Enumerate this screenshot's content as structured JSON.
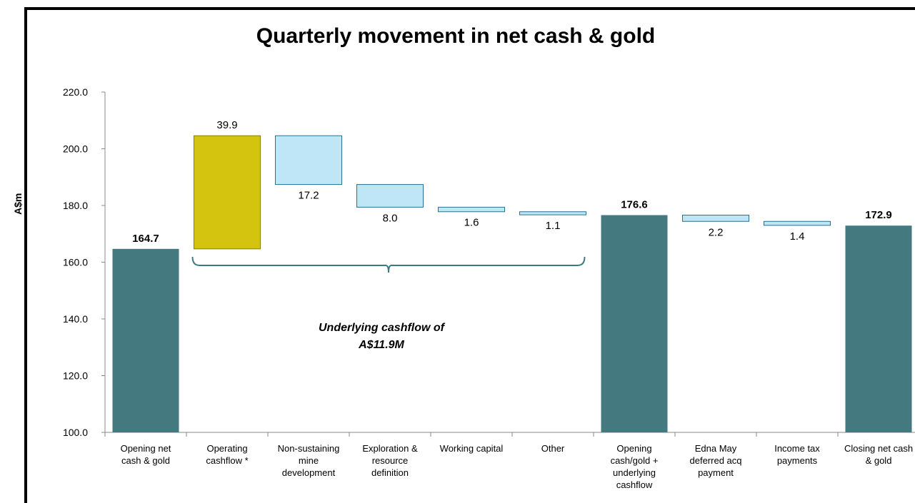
{
  "chart_data": {
    "type": "bar",
    "subtype": "waterfall",
    "title": "Quarterly movement in net cash & gold",
    "xlabel": "",
    "ylabel": "A$m",
    "ylim": [
      100,
      220
    ],
    "yticks": [
      "100.0",
      "120.0",
      "140.0",
      "160.0",
      "180.0",
      "200.0",
      "220.0"
    ],
    "grid": false,
    "bars": [
      {
        "category": [
          "Opening net",
          "cash & gold"
        ],
        "kind": "total",
        "start": 100,
        "end": 164.7,
        "label": "164.7",
        "color": "#43797f"
      },
      {
        "category": [
          "Operating",
          "cashflow *"
        ],
        "kind": "increase",
        "start": 164.7,
        "end": 204.6,
        "label": "39.9",
        "color": "#d4c40f"
      },
      {
        "category": [
          "Non-sustaining",
          "mine",
          "development"
        ],
        "kind": "decrease",
        "start": 204.6,
        "end": 187.4,
        "label": "17.2",
        "color": "#bfe6f7"
      },
      {
        "category": [
          "Exploration &",
          "resource",
          "definition"
        ],
        "kind": "decrease",
        "start": 187.4,
        "end": 179.4,
        "label": "8.0",
        "color": "#bfe6f7"
      },
      {
        "category": [
          "Working capital"
        ],
        "kind": "decrease",
        "start": 179.4,
        "end": 177.8,
        "label": "1.6",
        "color": "#bfe6f7"
      },
      {
        "category": [
          "Other"
        ],
        "kind": "decrease",
        "start": 177.8,
        "end": 176.7,
        "label": "1.1",
        "color": "#bfe6f7"
      },
      {
        "category": [
          "Opening",
          "cash/gold +",
          "underlying",
          "cashflow"
        ],
        "kind": "total",
        "start": 100,
        "end": 176.6,
        "label": "176.6",
        "color": "#43797f"
      },
      {
        "category": [
          "Edna May",
          "deferred acq",
          "payment"
        ],
        "kind": "decrease",
        "start": 176.6,
        "end": 174.4,
        "label": "2.2",
        "color": "#bfe6f7"
      },
      {
        "category": [
          "Income tax",
          "payments"
        ],
        "kind": "decrease",
        "start": 174.4,
        "end": 173.0,
        "label": "1.4",
        "color": "#bfe6f7"
      },
      {
        "category": [
          "Closing net cash",
          "& gold"
        ],
        "kind": "total",
        "start": 100,
        "end": 172.9,
        "label": "172.9",
        "color": "#43797f"
      }
    ],
    "annotation": {
      "lines": [
        "Underlying cashflow of",
        "A$11.9M"
      ],
      "bracket_from_bar": 1,
      "bracket_to_bar": 5
    }
  }
}
